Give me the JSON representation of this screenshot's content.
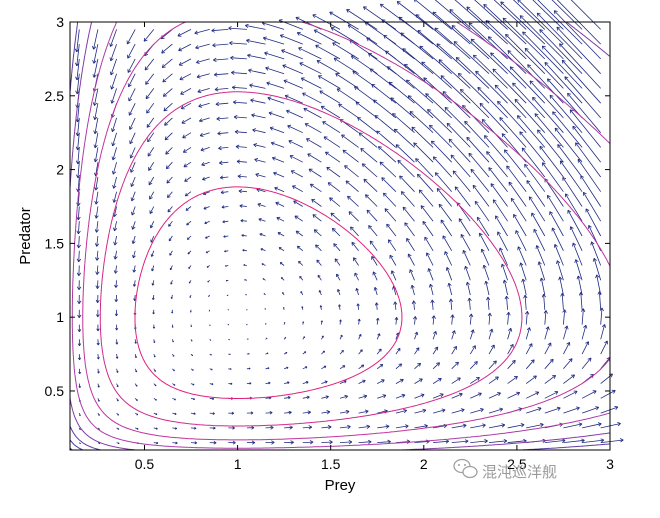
{
  "chart_data": {
    "type": "line",
    "subtype": "phase portrait (contour lines of conserved quantity with quiver vector field)",
    "title": "",
    "xlabel": "Prey",
    "ylabel": "Predator",
    "xlim": [
      0.1,
      3
    ],
    "ylim": [
      0.1,
      3
    ],
    "x_ticks": [
      0.5,
      1,
      1.5,
      2,
      2.5,
      3
    ],
    "x_tick_labels": [
      "0.5",
      "1",
      "1.5",
      "2",
      "2.5",
      "3"
    ],
    "y_ticks": [
      0.5,
      1,
      1.5,
      2,
      2.5,
      3
    ],
    "y_tick_labels": [
      "0.5",
      "1",
      "1.5",
      "2",
      "2.5",
      "3"
    ],
    "grid": false,
    "legend": "none",
    "equilibrium": {
      "x": 1,
      "y": 1
    },
    "contour_function": "x - ln(x) + y - ln(y)",
    "contour_levels": [
      2.25,
      2.6,
      2.95,
      3.3,
      3.65,
      4.0,
      4.35,
      4.7,
      5.05,
      5.4,
      5.75,
      6.1,
      6.45,
      6.8,
      7.3,
      7.8,
      8.3
    ],
    "contour_colormap": [
      "#e0207a",
      "#b03aa8",
      "#3a3a9a",
      "#2f5fbf",
      "#1faad0",
      "#7fd6b4",
      "#c8e070"
    ],
    "vector_field": {
      "dx": "x*(1-y)",
      "dy": "y*(x-1)",
      "color": "#1f2a80"
    }
  },
  "watermark": {
    "text": "混沌巡洋舰",
    "icon": "wechat-icon",
    "overlay_tick": "3"
  }
}
